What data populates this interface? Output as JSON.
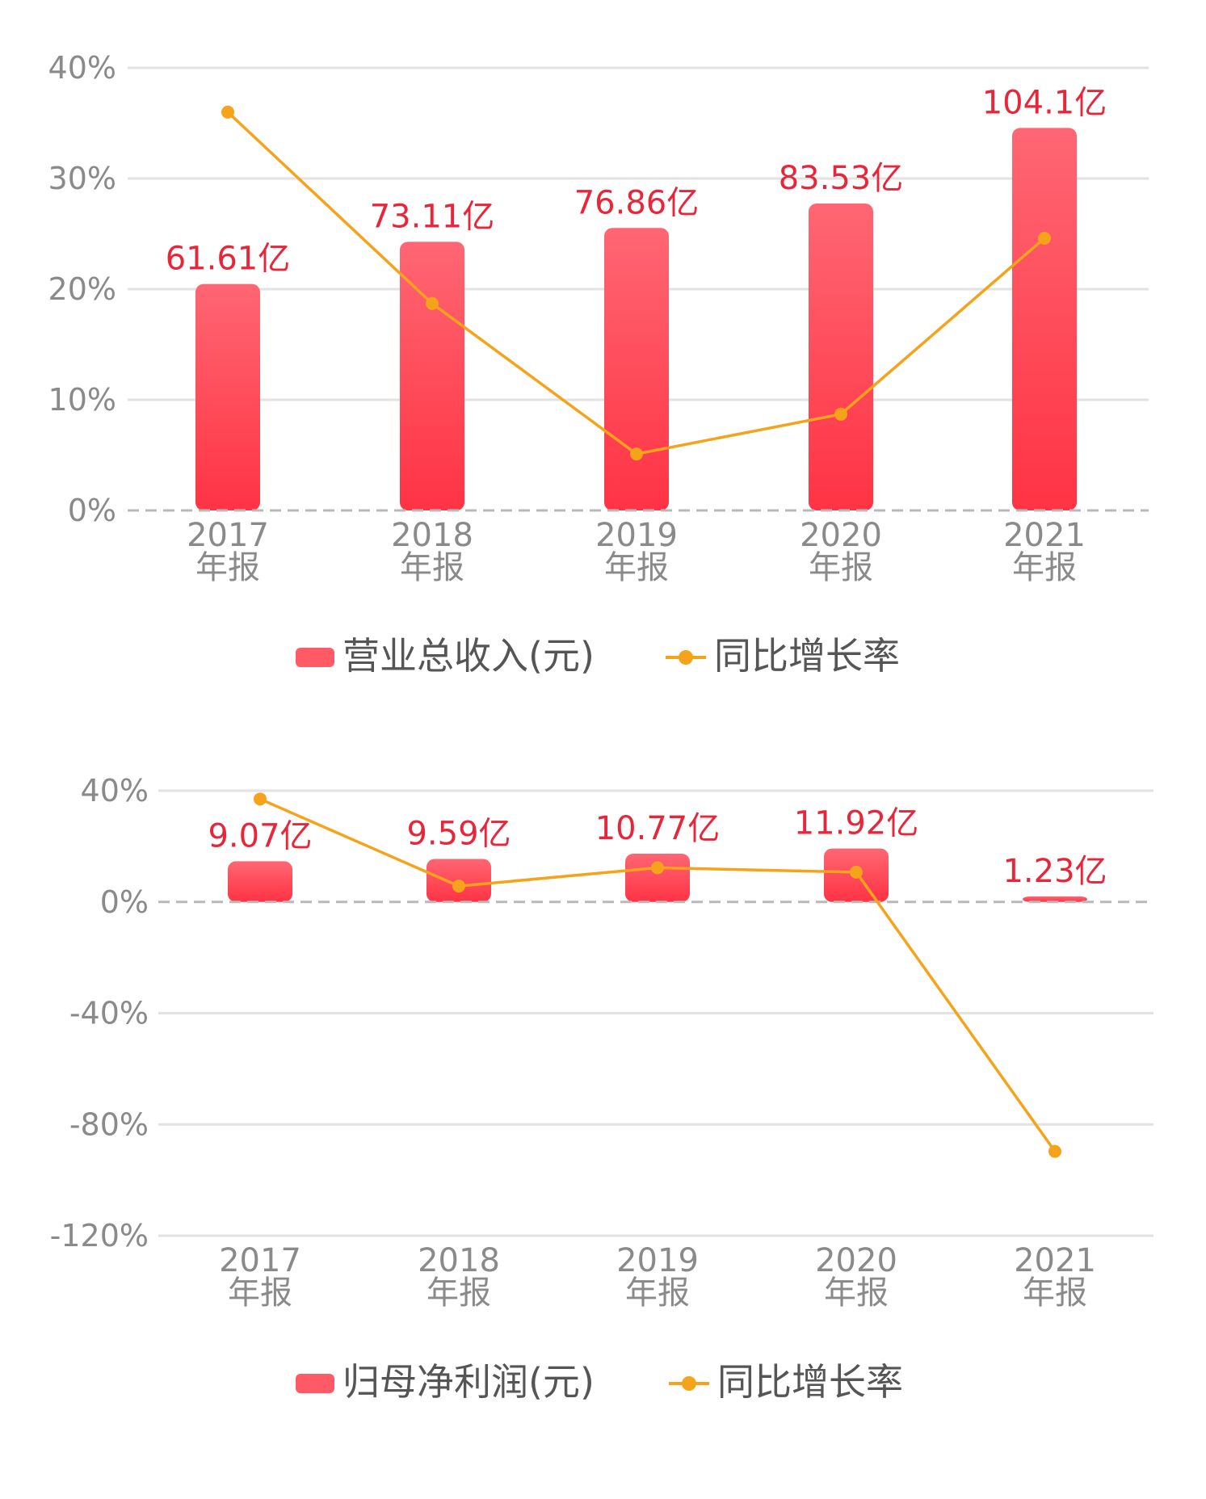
{
  "colors": {
    "bar": "#ff4a57",
    "line": "#f5a31a",
    "label": "#e8263a"
  },
  "chart_data": [
    {
      "type": "bar",
      "categories": [
        "2017\n年报",
        "2018\n年报",
        "2019\n年报",
        "2020\n年报",
        "2021\n年报"
      ],
      "series": [
        {
          "name": "营业总收入(元)",
          "type": "bar",
          "values": [
            61.61,
            73.11,
            76.86,
            83.53,
            104.1
          ],
          "labels": [
            "61.61亿",
            "73.11亿",
            "76.86亿",
            "83.53亿",
            "104.1亿"
          ]
        },
        {
          "name": "同比增长率",
          "type": "line",
          "values": [
            36.0,
            18.7,
            5.1,
            8.7,
            24.6
          ]
        }
      ],
      "yticks": [
        "0%",
        "10%",
        "20%",
        "30%",
        "40%"
      ],
      "ylim": [
        0,
        40
      ],
      "grid": true,
      "legend": "bottom"
    },
    {
      "type": "bar",
      "categories": [
        "2017\n年报",
        "2018\n年报",
        "2019\n年报",
        "2020\n年报",
        "2021\n年报"
      ],
      "series": [
        {
          "name": "归母净利润(元)",
          "type": "bar",
          "values": [
            9.07,
            9.59,
            10.77,
            11.92,
            1.23
          ],
          "labels": [
            "9.07亿",
            "9.59亿",
            "10.77亿",
            "11.92亿",
            "1.23亿"
          ]
        },
        {
          "name": "同比增长率",
          "type": "line",
          "values": [
            37.0,
            5.7,
            12.3,
            10.7,
            -89.7
          ]
        }
      ],
      "yticks": [
        "-120%",
        "-80%",
        "-40%",
        "0%",
        "40%"
      ],
      "ylim": [
        -120,
        40
      ],
      "grid": true,
      "legend": "bottom"
    }
  ]
}
